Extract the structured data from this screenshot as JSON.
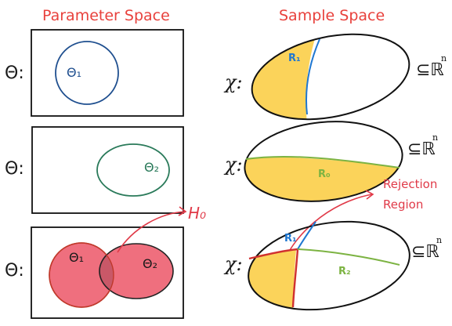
{
  "titles": {
    "parameter_space": "Parameter Space",
    "sample_space": "Sample Space"
  },
  "param_rows": [
    {
      "label": "Θ:",
      "sets": [
        {
          "name": "Θ₁",
          "color": "#1f4f8f"
        }
      ]
    },
    {
      "label": "Θ:",
      "sets": [
        {
          "name": "Θ₂",
          "color": "#2a7a5a"
        }
      ]
    },
    {
      "label": "Θ:",
      "sets": [
        {
          "name": "Θ₁",
          "color": "#c0392b"
        },
        {
          "name": "Θ₂",
          "color": "#1a1a1a"
        }
      ]
    }
  ],
  "sample_rows": [
    {
      "label": "χ:",
      "region": "R₁",
      "region_color": "#1f77d0",
      "space": "⊆ℝ",
      "space_sup": "n"
    },
    {
      "label": "χ:",
      "region": "R₀",
      "region_color": "#7cb342",
      "space": "⊆ℝ",
      "space_sup": "n"
    },
    {
      "label": "χ:",
      "region_a": "R₁",
      "region_b": "R₂",
      "space": "⊆ℝ",
      "space_sup": "n"
    }
  ],
  "annotations": {
    "hypothesis": "H₀",
    "rejection_line1": "Rejection",
    "rejection_line2": "Region"
  },
  "colors": {
    "title_red": "#e8413c",
    "fill_yellow": "#fbd35a",
    "fill_pink": "#ef6f7e",
    "annotation_red": "#e03a48"
  }
}
